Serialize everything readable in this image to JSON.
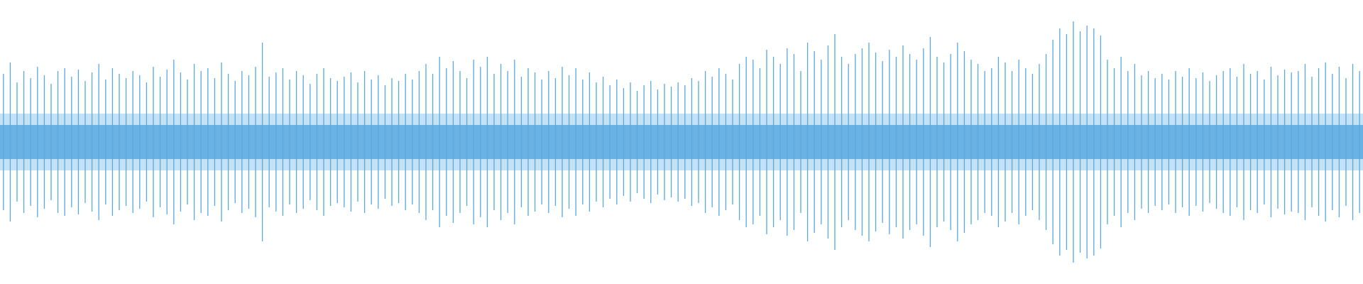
{
  "chart_data": {
    "type": "waveform",
    "color": "#5aa9e1",
    "values": [
      0.48,
      0.56,
      0.42,
      0.5,
      0.45,
      0.53,
      0.47,
      0.41,
      0.5,
      0.52,
      0.46,
      0.51,
      0.43,
      0.49,
      0.55,
      0.44,
      0.52,
      0.48,
      0.45,
      0.5,
      0.47,
      0.42,
      0.53,
      0.46,
      0.51,
      0.58,
      0.49,
      0.44,
      0.55,
      0.5,
      0.52,
      0.45,
      0.56,
      0.48,
      0.43,
      0.5,
      0.47,
      0.53,
      0.7,
      0.46,
      0.49,
      0.52,
      0.44,
      0.5,
      0.47,
      0.41,
      0.48,
      0.52,
      0.45,
      0.43,
      0.46,
      0.49,
      0.42,
      0.5,
      0.44,
      0.47,
      0.4,
      0.45,
      0.43,
      0.48,
      0.44,
      0.5,
      0.55,
      0.48,
      0.6,
      0.52,
      0.57,
      0.5,
      0.45,
      0.58,
      0.53,
      0.6,
      0.48,
      0.55,
      0.5,
      0.58,
      0.46,
      0.52,
      0.49,
      0.44,
      0.5,
      0.45,
      0.53,
      0.47,
      0.52,
      0.44,
      0.49,
      0.42,
      0.46,
      0.4,
      0.44,
      0.38,
      0.42,
      0.36,
      0.4,
      0.43,
      0.37,
      0.41,
      0.39,
      0.42,
      0.4,
      0.45,
      0.43,
      0.5,
      0.46,
      0.52,
      0.48,
      0.44,
      0.55,
      0.6,
      0.58,
      0.52,
      0.65,
      0.6,
      0.55,
      0.66,
      0.62,
      0.5,
      0.7,
      0.64,
      0.58,
      0.68,
      0.76,
      0.6,
      0.55,
      0.62,
      0.66,
      0.7,
      0.63,
      0.57,
      0.65,
      0.6,
      0.68,
      0.62,
      0.58,
      0.66,
      0.74,
      0.6,
      0.56,
      0.62,
      0.7,
      0.64,
      0.58,
      0.55,
      0.5,
      0.52,
      0.6,
      0.56,
      0.5,
      0.58,
      0.52,
      0.48,
      0.55,
      0.62,
      0.72,
      0.8,
      0.76,
      0.85,
      0.78,
      0.82,
      0.8,
      0.75,
      0.58,
      0.52,
      0.6,
      0.5,
      0.55,
      0.47,
      0.5,
      0.45,
      0.48,
      0.44,
      0.5,
      0.46,
      0.52,
      0.45,
      0.49,
      0.43,
      0.47,
      0.5,
      0.52,
      0.46,
      0.55,
      0.48,
      0.5,
      0.44,
      0.53,
      0.47,
      0.51,
      0.49,
      0.5,
      0.55,
      0.46,
      0.52,
      0.56,
      0.48,
      0.53,
      0.45,
      0.55,
      0.5
    ]
  }
}
